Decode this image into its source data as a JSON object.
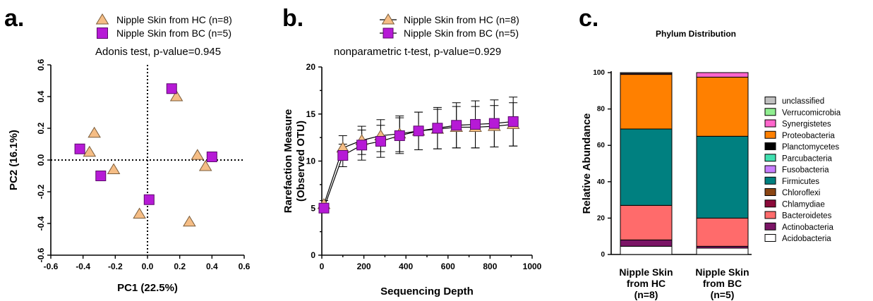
{
  "colors": {
    "HC": "#f5bd85",
    "HC_stroke": "#7a5c3a",
    "BC": "#b61ad6",
    "BC_stroke": "#5a0a6a"
  },
  "panel_letters": [
    "a.",
    "b.",
    "c."
  ],
  "chart_data": [
    {
      "type": "scatter",
      "panel": "a.",
      "annotation": "Adonis test, p-value=0.945",
      "xlabel": "PC1 (22.5%)",
      "ylabel": "PC2 (16.1%)",
      "xlim": [
        -0.6,
        0.6
      ],
      "ylim": [
        -0.6,
        0.6
      ],
      "xticks": [
        "-0.6",
        "-0.4",
        "-0.2",
        "0.0",
        "0.2",
        "0.4",
        "0.6"
      ],
      "yticks": [
        "-0.6",
        "-0.4",
        "-0.2",
        "0.0",
        "0.2",
        "0.4",
        "0.6"
      ],
      "legend_position": "top",
      "series": [
        {
          "name": "Nipple Skin from HC (n=8)",
          "marker": "triangle",
          "points": [
            [
              -0.33,
              0.17
            ],
            [
              -0.36,
              0.05
            ],
            [
              -0.21,
              -0.06
            ],
            [
              -0.05,
              -0.34
            ],
            [
              0.18,
              0.4
            ],
            [
              0.26,
              -0.39
            ],
            [
              0.31,
              0.03
            ],
            [
              0.36,
              -0.04
            ]
          ]
        },
        {
          "name": "Nipple Skin from BC (n=5)",
          "marker": "square",
          "points": [
            [
              -0.42,
              0.07
            ],
            [
              -0.29,
              -0.1
            ],
            [
              0.01,
              -0.25
            ],
            [
              0.15,
              0.45
            ],
            [
              0.4,
              0.02
            ]
          ]
        }
      ]
    },
    {
      "type": "line",
      "panel": "b.",
      "annotation": "nonparametric t-test, p-value=0.929",
      "xlabel": "Sequencing Depth",
      "ylabel": "Rarefaction Measure (Observed OTU)",
      "xlim": [
        0,
        1000
      ],
      "ylim": [
        0,
        20
      ],
      "xticks": [
        "0",
        "200",
        "400",
        "600",
        "800",
        "1000"
      ],
      "yticks": [
        "0",
        "5",
        "10",
        "15",
        "20"
      ],
      "x": [
        10,
        100,
        190,
        280,
        370,
        460,
        550,
        640,
        730,
        820,
        910
      ],
      "legend_position": "top-right",
      "series": [
        {
          "name": "Nipple Skin from HC (n=8)",
          "marker": "triangle",
          "values": [
            5.4,
            11.4,
            12.2,
            12.7,
            12.9,
            13.2,
            13.4,
            13.6,
            13.6,
            13.7,
            13.9
          ],
          "errors": [
            0.4,
            1.3,
            1.5,
            1.7,
            1.9,
            2.0,
            2.1,
            2.2,
            2.2,
            2.2,
            2.3
          ]
        },
        {
          "name": "Nipple Skin from BC (n=5)",
          "marker": "square",
          "values": [
            5.0,
            10.6,
            11.7,
            12.1,
            12.7,
            13.2,
            13.5,
            13.8,
            13.9,
            14.0,
            14.2
          ],
          "errors": [
            0.4,
            1.2,
            1.6,
            1.7,
            1.9,
            2.0,
            2.2,
            2.4,
            2.5,
            2.5,
            2.6
          ]
        }
      ]
    },
    {
      "type": "bar",
      "stacked": true,
      "panel": "c.",
      "title": "Phylum Distribution",
      "ylabel": "Relative Abundance",
      "ylim": [
        0,
        100
      ],
      "yticks": [
        "0",
        "20",
        "40",
        "60",
        "80",
        "100"
      ],
      "categories": [
        "Nipple Skin from HC (n=8)",
        "Nipple Skin from BC (n=5)"
      ],
      "category_lines": [
        [
          "Nipple Skin",
          "from HC",
          "(n=8)"
        ],
        [
          "Nipple Skin",
          "from BC",
          "(n=5)"
        ]
      ],
      "legend_position": "right",
      "series": [
        {
          "name": "Acidobacteria",
          "color": "#ffffff",
          "values": [
            4.5,
            3.5
          ]
        },
        {
          "name": "Actinobacteria",
          "color": "#7b1566",
          "values": [
            3.5,
            1.0
          ]
        },
        {
          "name": "Bacteroidetes",
          "color": "#ff6b6b",
          "values": [
            19.0,
            15.5
          ]
        },
        {
          "name": "Chlamydiae",
          "color": "#8b0a3a",
          "values": [
            0.0,
            0.0
          ]
        },
        {
          "name": "Chloroflexi",
          "color": "#8b4513",
          "values": [
            0.0,
            0.0
          ]
        },
        {
          "name": "Firmicutes",
          "color": "#008080",
          "values": [
            42.0,
            45.0
          ]
        },
        {
          "name": "Fusobacteria",
          "color": "#c77dff",
          "values": [
            0.0,
            0.0
          ]
        },
        {
          "name": "Parcubacteria",
          "color": "#40e0b0",
          "values": [
            0.0,
            0.0
          ]
        },
        {
          "name": "Planctomycetes",
          "color": "#000000",
          "values": [
            0.0,
            0.0
          ]
        },
        {
          "name": "Proteobacteria",
          "color": "#ff8000",
          "values": [
            30.0,
            32.5
          ]
        },
        {
          "name": "Synergistetes",
          "color": "#ff66cc",
          "values": [
            0.5,
            2.5
          ]
        },
        {
          "name": "Verrucomicrobia",
          "color": "#90ee90",
          "values": [
            0.0,
            0.0
          ]
        },
        {
          "name": "unclassified",
          "color": "#c0c0c0",
          "values": [
            0.5,
            0.0
          ]
        }
      ]
    }
  ]
}
